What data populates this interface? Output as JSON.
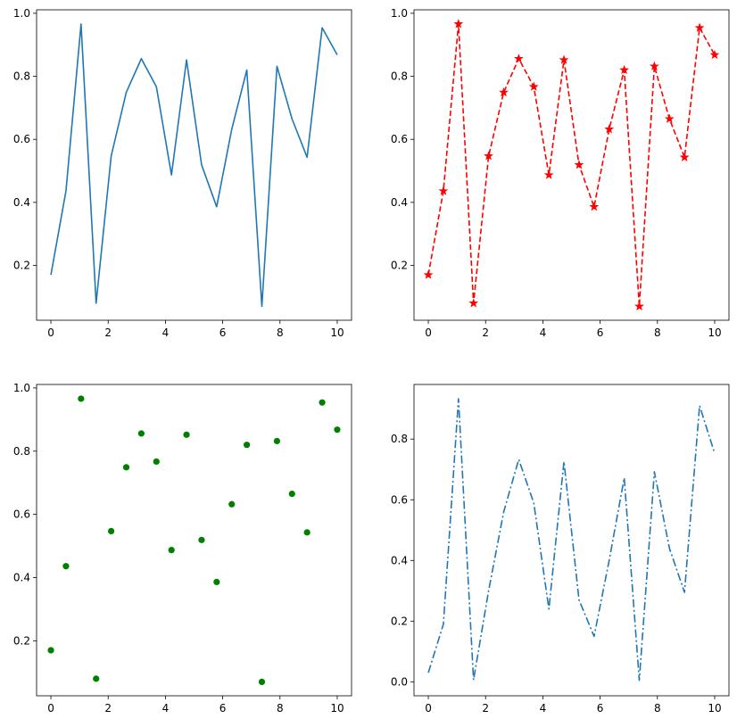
{
  "chart_data": [
    {
      "type": "line",
      "title": "",
      "xlabel": "",
      "ylabel": "",
      "xlim": [
        -0.5,
        10.5
      ],
      "ylim": [
        0.026,
        1.011
      ],
      "xticks": [
        0,
        2,
        4,
        6,
        8,
        10
      ],
      "yticks": [
        0.2,
        0.4,
        0.6,
        0.8,
        1.0
      ],
      "grid": false,
      "series": [
        {
          "color": "#1f77b4",
          "line_style": "solid",
          "marker": "none",
          "x": [
            0,
            0.526,
            1.053,
            1.579,
            2.105,
            2.632,
            3.158,
            3.684,
            4.211,
            4.737,
            5.263,
            5.789,
            6.316,
            6.842,
            7.368,
            7.895,
            8.421,
            8.947,
            9.474,
            10
          ],
          "y": [
            0.17,
            0.436,
            0.966,
            0.08,
            0.547,
            0.749,
            0.856,
            0.767,
            0.487,
            0.852,
            0.519,
            0.386,
            0.632,
            0.82,
            0.07,
            0.832,
            0.665,
            0.543,
            0.954,
            0.868
          ]
        }
      ]
    },
    {
      "type": "line",
      "title": "",
      "xlabel": "",
      "ylabel": "",
      "xlim": [
        -0.5,
        10.5
      ],
      "ylim": [
        0.026,
        1.011
      ],
      "xticks": [
        0,
        2,
        4,
        6,
        8,
        10
      ],
      "yticks": [
        0.2,
        0.4,
        0.6,
        0.8,
        1.0
      ],
      "grid": false,
      "series": [
        {
          "color": "#ff0000",
          "line_style": "dashed",
          "marker": "star",
          "x": [
            0,
            0.526,
            1.053,
            1.579,
            2.105,
            2.632,
            3.158,
            3.684,
            4.211,
            4.737,
            5.263,
            5.789,
            6.316,
            6.842,
            7.368,
            7.895,
            8.421,
            8.947,
            9.474,
            10
          ],
          "y": [
            0.17,
            0.436,
            0.966,
            0.08,
            0.547,
            0.749,
            0.856,
            0.767,
            0.487,
            0.852,
            0.519,
            0.386,
            0.632,
            0.82,
            0.07,
            0.832,
            0.665,
            0.543,
            0.954,
            0.868
          ]
        }
      ]
    },
    {
      "type": "scatter",
      "title": "",
      "xlabel": "",
      "ylabel": "",
      "xlim": [
        -0.5,
        10.5
      ],
      "ylim": [
        0.026,
        1.011
      ],
      "xticks": [
        0,
        2,
        4,
        6,
        8,
        10
      ],
      "yticks": [
        0.2,
        0.4,
        0.6,
        0.8,
        1.0
      ],
      "grid": false,
      "series": [
        {
          "color": "#008000",
          "line_style": "none",
          "marker": "circle",
          "x": [
            0,
            0.526,
            1.053,
            1.579,
            2.105,
            2.632,
            3.158,
            3.684,
            4.211,
            4.737,
            5.263,
            5.789,
            6.316,
            6.842,
            7.368,
            7.895,
            8.421,
            8.947,
            9.474,
            10
          ],
          "y": [
            0.17,
            0.436,
            0.966,
            0.08,
            0.547,
            0.749,
            0.856,
            0.767,
            0.487,
            0.852,
            0.519,
            0.386,
            0.632,
            0.82,
            0.07,
            0.832,
            0.665,
            0.543,
            0.954,
            0.868
          ]
        }
      ]
    },
    {
      "type": "line",
      "title": "",
      "xlabel": "",
      "ylabel": "",
      "xlim": [
        -0.5,
        10.5
      ],
      "ylim": [
        -0.046,
        0.98
      ],
      "xticks": [
        0,
        2,
        4,
        6,
        8,
        10
      ],
      "yticks": [
        0.0,
        0.2,
        0.4,
        0.6,
        0.8
      ],
      "grid": false,
      "series": [
        {
          "color": "#1f77b4",
          "line_style": "dashdot",
          "marker": "none",
          "x": [
            0,
            0.526,
            1.053,
            1.579,
            2.105,
            2.632,
            3.158,
            3.684,
            4.211,
            4.737,
            5.263,
            5.789,
            6.316,
            6.842,
            7.368,
            7.895,
            8.421,
            8.947,
            9.474,
            10
          ],
          "y": [
            0.03,
            0.19,
            0.933,
            0.006,
            0.3,
            0.56,
            0.733,
            0.589,
            0.24,
            0.726,
            0.27,
            0.15,
            0.4,
            0.672,
            0.005,
            0.692,
            0.44,
            0.295,
            0.91,
            0.753
          ]
        }
      ]
    }
  ]
}
